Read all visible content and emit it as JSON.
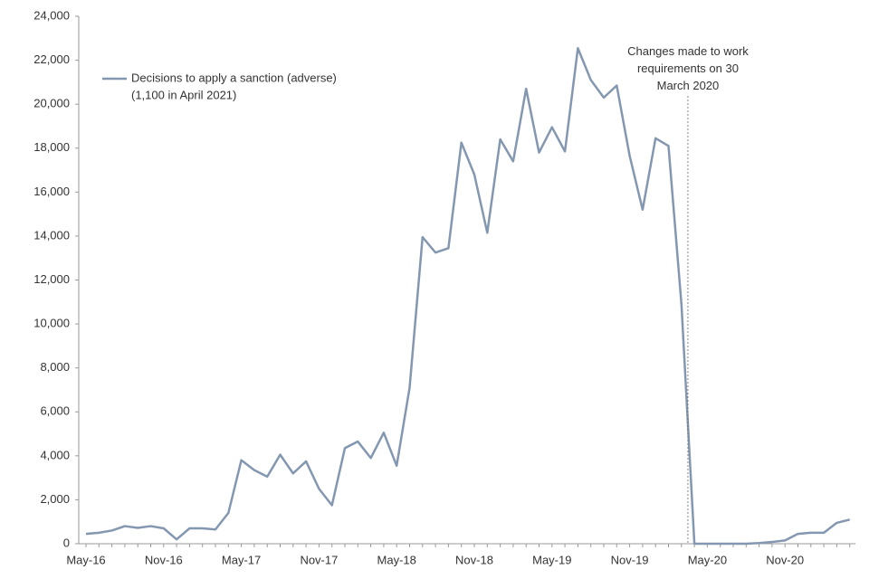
{
  "chart_data": {
    "type": "line",
    "categories": [
      "May-16",
      null,
      null,
      null,
      null,
      null,
      "Nov-16",
      null,
      null,
      null,
      null,
      null,
      "May-17",
      null,
      null,
      null,
      null,
      null,
      "Nov-17",
      null,
      null,
      null,
      null,
      null,
      "May-18",
      null,
      null,
      null,
      null,
      null,
      "Nov-18",
      null,
      null,
      null,
      null,
      null,
      "May-19",
      null,
      null,
      null,
      null,
      null,
      "Nov-19",
      null,
      null,
      null,
      null,
      null,
      "May-20",
      null,
      null,
      null,
      null,
      null,
      "Nov-20",
      null,
      null,
      null,
      null,
      null
    ],
    "series": [
      {
        "name": "Decisions to apply a sanction (adverse)",
        "color": "#8497b0",
        "values": [
          450,
          500,
          600,
          800,
          720,
          800,
          700,
          200,
          700,
          700,
          650,
          1400,
          3800,
          3350,
          3050,
          4050,
          3200,
          3750,
          2500,
          1750,
          4350,
          4650,
          3900,
          5050,
          3550,
          7100,
          13950,
          13250,
          13450,
          18250,
          16800,
          14150,
          18400,
          17400,
          20700,
          17800,
          18950,
          17850,
          22550,
          21100,
          20300,
          20850,
          17650,
          15200,
          18450,
          18100,
          10900,
          0,
          0,
          0,
          0,
          0,
          30,
          80,
          150,
          450,
          500,
          500,
          950,
          1100
        ]
      }
    ],
    "legend_note": "(1,100 in April 2021)",
    "annotation": "Changes made to work requirements on 30 March 2020",
    "ylim": [
      0,
      24000
    ],
    "yticks": [
      0,
      {
        "value": 2000,
        "label": "2,000"
      },
      {
        "value": 4000,
        "label": "4,000"
      },
      {
        "value": 6000,
        "label": "6,000"
      },
      {
        "value": 8000,
        "label": "8,000"
      },
      {
        "value": 10000,
        "label": "10,000"
      },
      {
        "value": 12000,
        "label": "12,000"
      },
      {
        "value": 14000,
        "label": "14,000"
      },
      {
        "value": 16000,
        "label": "16,000"
      },
      {
        "value": 18000,
        "label": "18,000"
      },
      {
        "value": 20000,
        "label": "20,000"
      },
      {
        "value": 22000,
        "label": "22,000"
      },
      {
        "value": 24000,
        "label": "24,000"
      }
    ],
    "grid": false,
    "legend": "top-left"
  }
}
